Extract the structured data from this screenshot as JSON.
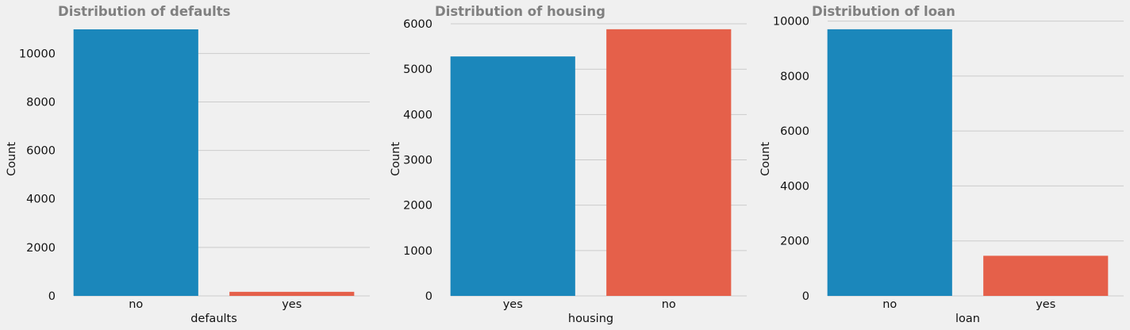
{
  "chart_data": [
    {
      "type": "bar",
      "title": "Distribution of defaults",
      "xlabel": "defaults",
      "ylabel": "Count",
      "categories": [
        "no",
        "yes"
      ],
      "values": [
        10994,
        168
      ],
      "colors": [
        "#1b87bb",
        "#e5604a"
      ],
      "ylim": [
        0,
        11550
      ],
      "yticks": [
        0,
        2000,
        4000,
        6000,
        8000,
        10000
      ],
      "grid": true
    },
    {
      "type": "bar",
      "title": "Distribution of housing",
      "xlabel": "housing",
      "ylabel": "Count",
      "categories": [
        "yes",
        "no"
      ],
      "values": [
        5281,
        5881
      ],
      "colors": [
        "#1b87bb",
        "#e5604a"
      ],
      "ylim": [
        0,
        6176
      ],
      "yticks": [
        0,
        1000,
        2000,
        3000,
        4000,
        5000,
        6000
      ],
      "grid": true
    },
    {
      "type": "bar",
      "title": "Distribution of loan",
      "xlabel": "loan",
      "ylabel": "Count",
      "categories": [
        "no",
        "yes"
      ],
      "values": [
        9702,
        1460
      ],
      "colors": [
        "#1b87bb",
        "#e5604a"
      ],
      "ylim": [
        0,
        10190
      ],
      "yticks": [
        0,
        2000,
        4000,
        6000,
        8000,
        10000
      ],
      "grid": true
    }
  ]
}
